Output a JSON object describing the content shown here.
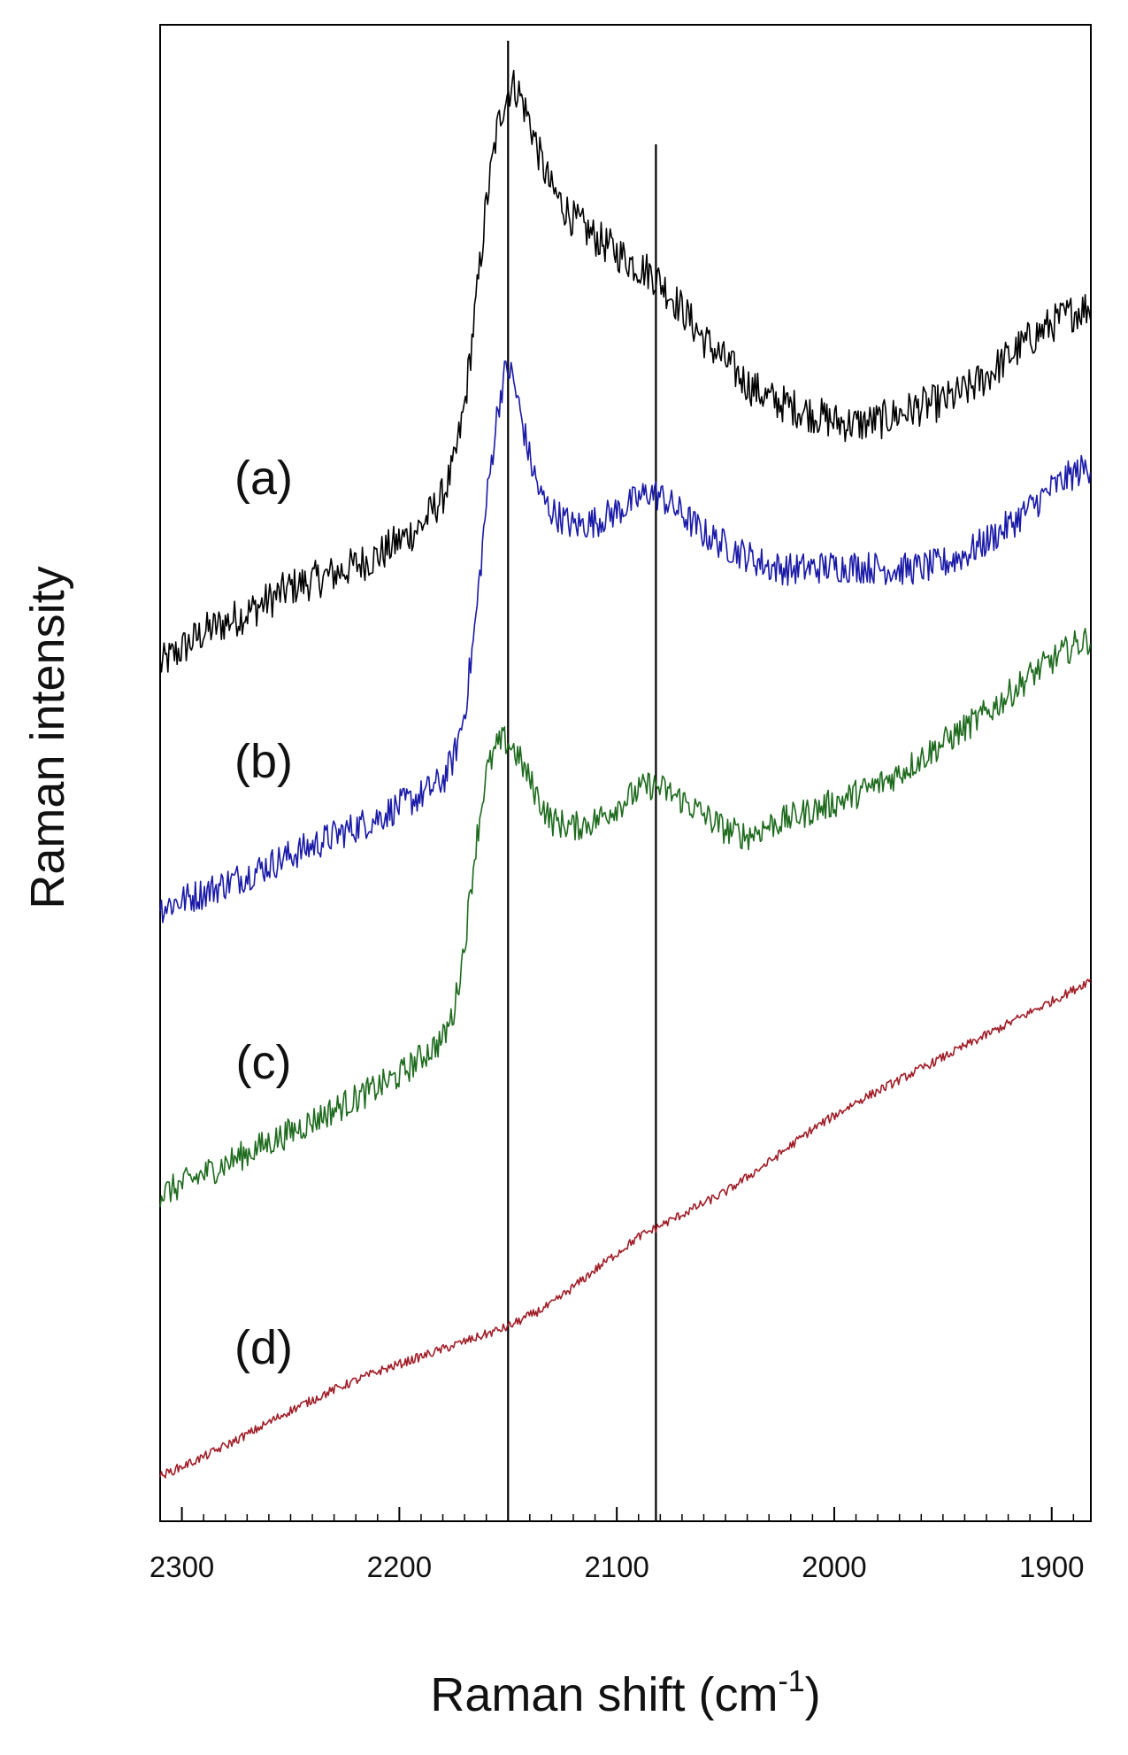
{
  "chart_data": {
    "type": "line",
    "title": "",
    "xlabel": "Raman shift (cm",
    "xlabel_sup": "-1",
    "xlabel_close": ")",
    "ylabel": "Raman intensity",
    "xlim": [
      2310,
      1882
    ],
    "x_reversed": true,
    "ylim": [
      0,
      1
    ],
    "grid": false,
    "legend": "none",
    "x_ticks": [
      2300,
      2200,
      2100,
      2000,
      1900
    ],
    "x_tick_labels": [
      "2300",
      "2200",
      "2100",
      "2000",
      "1900"
    ],
    "reference_lines": [
      2150,
      2082
    ],
    "series": [
      {
        "label": "(a)",
        "color": "#000000",
        "x": [
          2310,
          2290,
          2270,
          2250,
          2230,
          2210,
          2200,
          2190,
          2180,
          2175,
          2170,
          2165,
          2160,
          2155,
          2152,
          2150,
          2148,
          2145,
          2140,
          2135,
          2130,
          2120,
          2110,
          2100,
          2090,
          2085,
          2080,
          2070,
          2060,
          2050,
          2040,
          2030,
          2020,
          2010,
          2000,
          1990,
          1980,
          1970,
          1960,
          1950,
          1940,
          1930,
          1920,
          1910,
          1900,
          1890,
          1882
        ],
        "y": [
          0.572,
          0.594,
          0.607,
          0.624,
          0.633,
          0.645,
          0.655,
          0.665,
          0.685,
          0.705,
          0.745,
          0.81,
          0.88,
          0.93,
          0.948,
          0.955,
          0.96,
          0.955,
          0.935,
          0.91,
          0.89,
          0.87,
          0.858,
          0.848,
          0.838,
          0.835,
          0.828,
          0.81,
          0.79,
          0.775,
          0.76,
          0.75,
          0.745,
          0.74,
          0.735,
          0.733,
          0.735,
          0.74,
          0.745,
          0.748,
          0.755,
          0.765,
          0.778,
          0.79,
          0.8,
          0.808,
          0.812
        ]
      },
      {
        "label": "(b)",
        "color": "#1a1aa8",
        "x": [
          2310,
          2290,
          2270,
          2250,
          2230,
          2210,
          2200,
          2190,
          2180,
          2175,
          2170,
          2165,
          2160,
          2155,
          2152,
          2150,
          2148,
          2145,
          2140,
          2135,
          2130,
          2120,
          2110,
          2100,
          2090,
          2085,
          2080,
          2070,
          2060,
          2050,
          2040,
          2030,
          2020,
          2010,
          2000,
          1990,
          1980,
          1970,
          1960,
          1950,
          1940,
          1930,
          1920,
          1910,
          1900,
          1890,
          1882
        ],
        "y": [
          0.41,
          0.42,
          0.432,
          0.445,
          0.458,
          0.47,
          0.478,
          0.485,
          0.495,
          0.51,
          0.54,
          0.6,
          0.68,
          0.74,
          0.765,
          0.77,
          0.765,
          0.745,
          0.71,
          0.685,
          0.675,
          0.665,
          0.668,
          0.675,
          0.683,
          0.688,
          0.685,
          0.673,
          0.66,
          0.652,
          0.645,
          0.638,
          0.636,
          0.637,
          0.638,
          0.638,
          0.637,
          0.636,
          0.637,
          0.64,
          0.646,
          0.655,
          0.665,
          0.677,
          0.69,
          0.7,
          0.705
        ]
      },
      {
        "label": "(c)",
        "color": "#1e6b1e",
        "x": [
          2310,
          2290,
          2270,
          2250,
          2230,
          2210,
          2200,
          2190,
          2180,
          2175,
          2170,
          2165,
          2160,
          2155,
          2152,
          2150,
          2148,
          2145,
          2140,
          2135,
          2130,
          2120,
          2110,
          2100,
          2090,
          2085,
          2080,
          2070,
          2060,
          2050,
          2040,
          2030,
          2020,
          2010,
          2000,
          1990,
          1980,
          1970,
          1960,
          1950,
          1940,
          1930,
          1920,
          1910,
          1900,
          1890,
          1882
        ],
        "y": [
          0.218,
          0.232,
          0.246,
          0.26,
          0.275,
          0.29,
          0.298,
          0.31,
          0.322,
          0.34,
          0.385,
          0.45,
          0.5,
          0.518,
          0.522,
          0.52,
          0.517,
          0.51,
          0.495,
          0.48,
          0.468,
          0.464,
          0.468,
          0.478,
          0.488,
          0.492,
          0.49,
          0.482,
          0.472,
          0.462,
          0.458,
          0.465,
          0.47,
          0.475,
          0.48,
          0.486,
          0.492,
          0.5,
          0.51,
          0.52,
          0.53,
          0.54,
          0.552,
          0.565,
          0.575,
          0.585,
          0.59
        ]
      },
      {
        "label": "(d)",
        "color": "#a01e28",
        "x": [
          2310,
          2290,
          2270,
          2250,
          2230,
          2210,
          2190,
          2170,
          2150,
          2130,
          2110,
          2090,
          2070,
          2050,
          2030,
          2010,
          1990,
          1970,
          1950,
          1930,
          1910,
          1890,
          1882
        ],
        "y": [
          0.03,
          0.043,
          0.058,
          0.074,
          0.088,
          0.1,
          0.11,
          0.12,
          0.13,
          0.145,
          0.168,
          0.19,
          0.205,
          0.22,
          0.24,
          0.262,
          0.28,
          0.295,
          0.31,
          0.325,
          0.34,
          0.355,
          0.362
        ]
      }
    ]
  }
}
